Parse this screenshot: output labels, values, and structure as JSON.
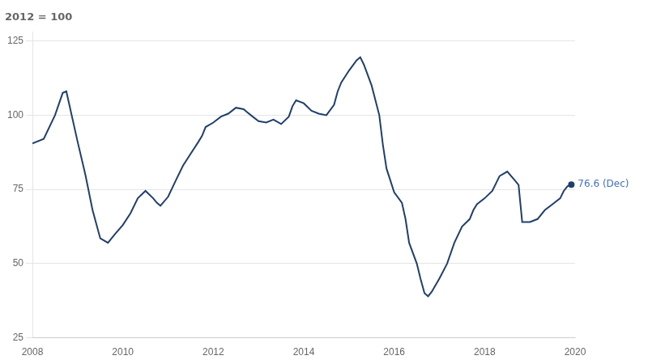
{
  "chart_data": {
    "type": "line",
    "title": "2012 = 100",
    "color": "#1f3f6e",
    "x": [
      2008.0,
      2008.25,
      2008.5,
      2008.67,
      2008.75,
      2009.0,
      2009.17,
      2009.33,
      2009.5,
      2009.67,
      2009.75,
      2009.83,
      2010.0,
      2010.17,
      2010.33,
      2010.5,
      2010.67,
      2010.75,
      2010.83,
      2011.0,
      2011.17,
      2011.33,
      2011.5,
      2011.67,
      2011.75,
      2011.83,
      2012.0,
      2012.17,
      2012.33,
      2012.5,
      2012.67,
      2012.75,
      2012.83,
      2013.0,
      2013.17,
      2013.33,
      2013.5,
      2013.67,
      2013.75,
      2013.83,
      2014.0,
      2014.17,
      2014.33,
      2014.5,
      2014.67,
      2014.75,
      2014.83,
      2015.0,
      2015.17,
      2015.25,
      2015.33,
      2015.5,
      2015.67,
      2015.75,
      2015.83,
      2016.0,
      2016.17,
      2016.25,
      2016.33,
      2016.5,
      2016.58,
      2016.67,
      2016.75,
      2016.83,
      2017.0,
      2017.17,
      2017.33,
      2017.5,
      2017.67,
      2017.75,
      2017.83,
      2018.0,
      2018.17,
      2018.33,
      2018.5,
      2018.67,
      2018.75,
      2018.83,
      2019.0,
      2019.17,
      2019.33,
      2019.5,
      2019.67,
      2019.75,
      2019.83,
      2019.917
    ],
    "values": [
      90.5,
      92.0,
      100.0,
      107.5,
      108.0,
      91.0,
      80.0,
      68.0,
      58.5,
      57.0,
      58.5,
      60.0,
      63.0,
      67.0,
      72.0,
      74.5,
      72.0,
      70.5,
      69.5,
      72.5,
      78.0,
      83.0,
      87.0,
      91.0,
      93.0,
      96.0,
      97.5,
      99.5,
      100.5,
      102.5,
      102.0,
      101.0,
      100.0,
      98.0,
      97.5,
      98.5,
      97.0,
      99.5,
      103.0,
      105.0,
      104.0,
      101.5,
      100.5,
      100.0,
      103.5,
      108.0,
      111.0,
      115.0,
      118.5,
      119.5,
      117.0,
      110.0,
      100.0,
      90.0,
      82.0,
      74.0,
      70.5,
      65.0,
      57.0,
      50.0,
      45.0,
      40.0,
      39.0,
      40.5,
      45.0,
      50.0,
      57.0,
      62.5,
      65.0,
      68.0,
      70.0,
      72.0,
      74.5,
      79.5,
      81.0,
      78.0,
      76.5,
      64.0,
      64.0,
      65.0,
      68.0,
      70.0,
      72.0,
      74.5,
      76.0,
      76.6
    ],
    "xlim": [
      2008,
      2020
    ],
    "xticks": [
      2008,
      2010,
      2012,
      2014,
      2016,
      2018,
      2020
    ],
    "ylim": [
      25,
      128
    ],
    "yticks": [
      25,
      50,
      75,
      100,
      125
    ],
    "grid": "y",
    "annotations": [
      {
        "text": "76.6 (Dec)",
        "x": 2019.917,
        "y": 76.6,
        "color": "#4472c4"
      }
    ]
  }
}
